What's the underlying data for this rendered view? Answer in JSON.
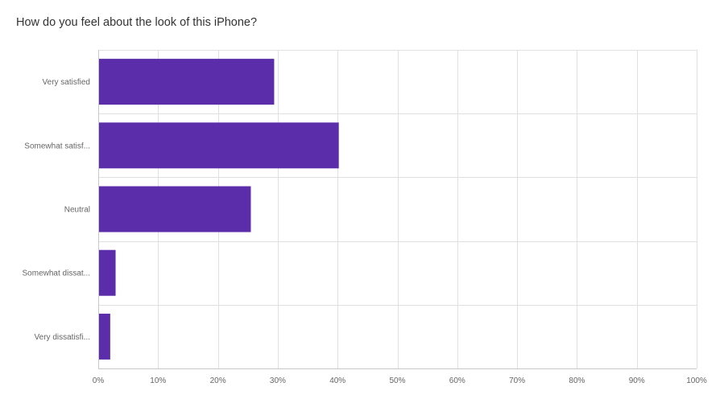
{
  "question": {
    "title": "How do you feel about the look of this iPhone?"
  },
  "colors": {
    "bar": "#5c2dab",
    "grid": "#e0e0e0",
    "axis": "#c8c8c8"
  },
  "chart_data": {
    "type": "bar",
    "orientation": "horizontal",
    "categories": [
      "Very satisfied",
      "Somewhat satisf...",
      "Neutral",
      "Somewhat dissat...",
      "Very dissatisfi..."
    ],
    "values": [
      29.4,
      40.2,
      25.5,
      2.9,
      2.0
    ],
    "xlim": [
      0,
      100
    ],
    "x_ticks": [
      "0%",
      "10%",
      "20%",
      "30%",
      "40%",
      "50%",
      "60%",
      "70%",
      "80%",
      "90%",
      "100%"
    ],
    "grid": true
  }
}
